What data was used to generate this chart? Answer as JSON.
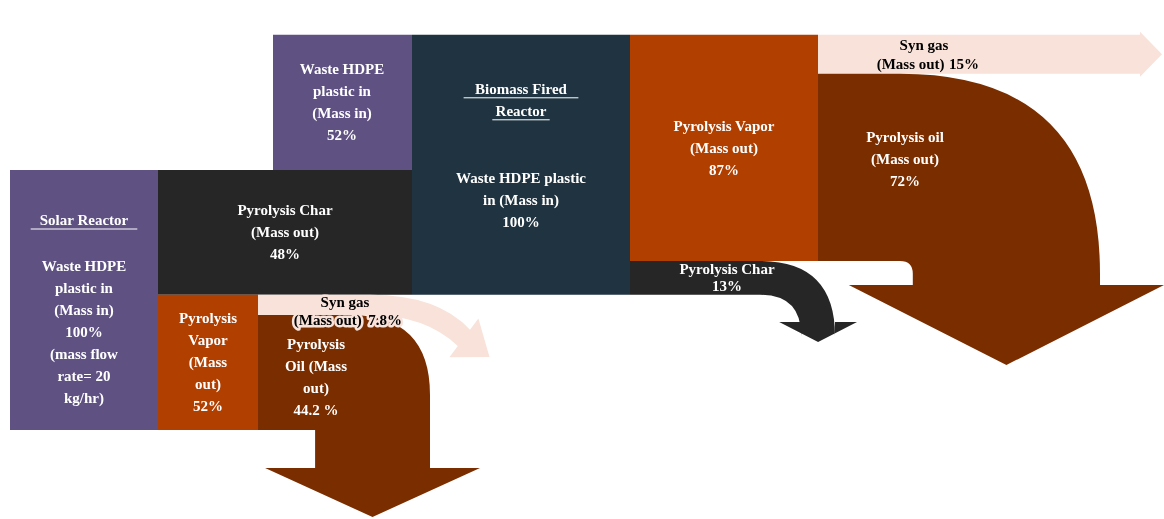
{
  "chart_data": {
    "type": "other",
    "categories": [
      "Waste HDPE plastic in (Mass in)",
      "Pyrolysis Char (Mass out)",
      "Pyrolysis Vapor (Mass out)",
      "Syn gas (Mass out)",
      "Pyrolysis Oil (Mass out)",
      "Waste HDPE plastic in (Mass in)",
      "Waste HDPE plastic in (Mass in)",
      "Pyrolysis Vapor (Mass out)",
      "Pyrolysis Char",
      "Syn gas (Mass out)",
      "Pyrolysis oil (Mass out)"
    ],
    "values": [
      100,
      48,
      52,
      7.8,
      44.2,
      52,
      100,
      87,
      13,
      15,
      72
    ],
    "value_labels": [
      "100%",
      "48%",
      "52%",
      "7.8%",
      "44.2 %",
      "52%",
      "100%",
      "87%",
      "13%",
      "15%",
      "72%"
    ],
    "colors": [
      "#5f5283",
      "#262626",
      "#b03f00",
      "#f8e2da",
      "#7a2e00",
      "#5f5283",
      "#1f3340",
      "#b03f00",
      "#262626",
      "#f8e2da",
      "#7a2e00"
    ],
    "annotations": [
      "Solar Reactor",
      "Biomass  Fired Reactor",
      "(mass flow rate= 20 kg/hr)"
    ]
  }
}
